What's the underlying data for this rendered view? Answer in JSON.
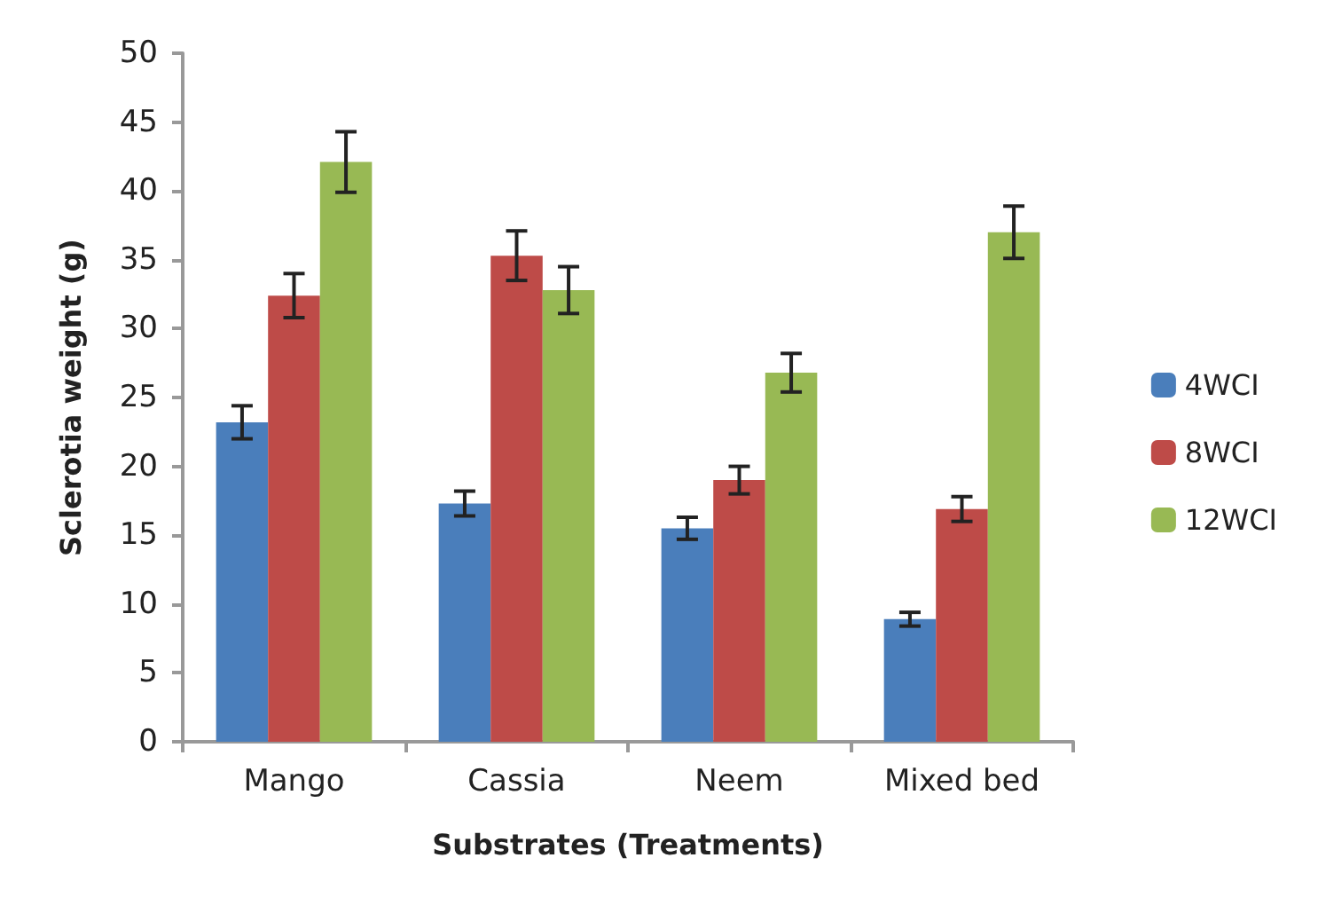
{
  "chart_data": {
    "type": "bar",
    "xlabel": "Substrates (Treatments)",
    "ylabel": "Sclerotia weight (g)",
    "categories": [
      "Mango",
      "Cassia",
      "Neem",
      "Mixed bed"
    ],
    "series": [
      {
        "name": "4WCI",
        "color": "#4a7ebb",
        "values": [
          23.2,
          17.3,
          15.5,
          8.9
        ],
        "errors": [
          1.2,
          0.9,
          0.8,
          0.5
        ]
      },
      {
        "name": "8WCI",
        "color": "#be4b48",
        "values": [
          32.4,
          35.3,
          19.0,
          16.9
        ],
        "errors": [
          1.6,
          1.8,
          1.0,
          0.9
        ]
      },
      {
        "name": "12WCI",
        "color": "#98b954",
        "values": [
          42.1,
          32.8,
          26.8,
          37.0
        ],
        "errors": [
          2.2,
          1.7,
          1.4,
          1.9
        ]
      }
    ],
    "ylim": [
      0,
      50
    ],
    "yticks": [
      0,
      5,
      10,
      15,
      20,
      25,
      30,
      35,
      40,
      45,
      50
    ],
    "grid": false,
    "legend": "right"
  }
}
